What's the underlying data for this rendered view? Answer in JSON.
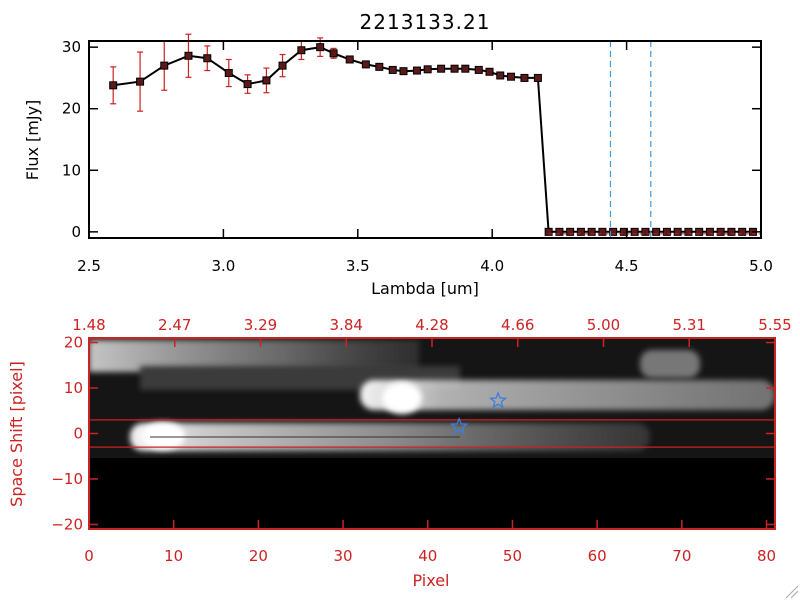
{
  "colors": {
    "accent_red": "#cc2222",
    "marker_dark": "#5a1a1a",
    "line_black": "#000000",
    "dashed_blue": "#3a9ad9",
    "star_blue": "#3a7fe0"
  },
  "chart_data": [
    {
      "type": "line",
      "title": "2213133.21",
      "xlabel": "Lambda [um]",
      "ylabel": "Flux [mJy]",
      "xlim": [
        2.5,
        5.0
      ],
      "ylim": [
        -1,
        31
      ],
      "xticks": [
        "2.5",
        "3.0",
        "3.5",
        "4.0",
        "4.5",
        "5.0"
      ],
      "yticks": [
        "0",
        "10",
        "20",
        "30"
      ],
      "grid": false,
      "series": [
        {
          "x": [
            2.59,
            2.69,
            2.78,
            2.87,
            2.94,
            3.02,
            3.09,
            3.16,
            3.22,
            3.29,
            3.36,
            3.41,
            3.47,
            3.53,
            3.58,
            3.63,
            3.67,
            3.72,
            3.76,
            3.81,
            3.86,
            3.9,
            3.95,
            3.99,
            4.03,
            4.07,
            4.12,
            4.17,
            4.21,
            4.25,
            4.29,
            4.33,
            4.37,
            4.41,
            4.45,
            4.49,
            4.53,
            4.57,
            4.61,
            4.65,
            4.69,
            4.73,
            4.77,
            4.81,
            4.85,
            4.89,
            4.93,
            4.97
          ],
          "y": [
            23.8,
            24.4,
            27.0,
            28.6,
            28.2,
            25.8,
            24.0,
            24.6,
            27.0,
            29.5,
            30.0,
            29.0,
            28.0,
            27.2,
            26.8,
            26.3,
            26.1,
            26.2,
            26.4,
            26.5,
            26.5,
            26.5,
            26.3,
            26.0,
            25.4,
            25.2,
            25.0,
            25.0,
            0,
            0,
            0,
            0,
            0,
            0,
            0,
            0,
            0,
            0,
            0,
            0,
            0,
            0,
            0,
            0,
            0,
            0,
            0,
            0
          ],
          "yerr": [
            3.0,
            4.8,
            4.0,
            3.5,
            2.0,
            2.2,
            1.5,
            2.0,
            1.8,
            1.5,
            1.5,
            0.8,
            0.5,
            0.3,
            0.3,
            0.3,
            0.3,
            0.2,
            0.2,
            0.2,
            0.2,
            0.2,
            0.2,
            0.2,
            0.2,
            0.2,
            0.2,
            0.2,
            0,
            0,
            0,
            0,
            0,
            0,
            0,
            0,
            0,
            0,
            0,
            0,
            0,
            0,
            0,
            0,
            0,
            0,
            0,
            0
          ]
        }
      ],
      "vertical_lines": [
        4.44,
        4.59
      ]
    },
    {
      "type": "heatmap",
      "xlabel": "Pixel",
      "ylabel": "Space Shift [pixel]",
      "xlim": [
        0,
        81
      ],
      "ylim": [
        -21,
        21
      ],
      "xticks": [
        "0",
        "10",
        "20",
        "30",
        "40",
        "50",
        "60",
        "70",
        "80"
      ],
      "yticks": [
        "20",
        "10",
        "0",
        "−10",
        "−20"
      ],
      "top_axis_ticks": [
        "1.48",
        "2.47",
        "3.29",
        "3.84",
        "4.28",
        "4.66",
        "5.00",
        "5.31",
        "5.55"
      ],
      "horizontal_lines": [
        3,
        -3
      ],
      "stars": [
        {
          "x": 43.7,
          "y": 1.5
        },
        {
          "x": 48.3,
          "y": 7.2
        }
      ]
    }
  ]
}
